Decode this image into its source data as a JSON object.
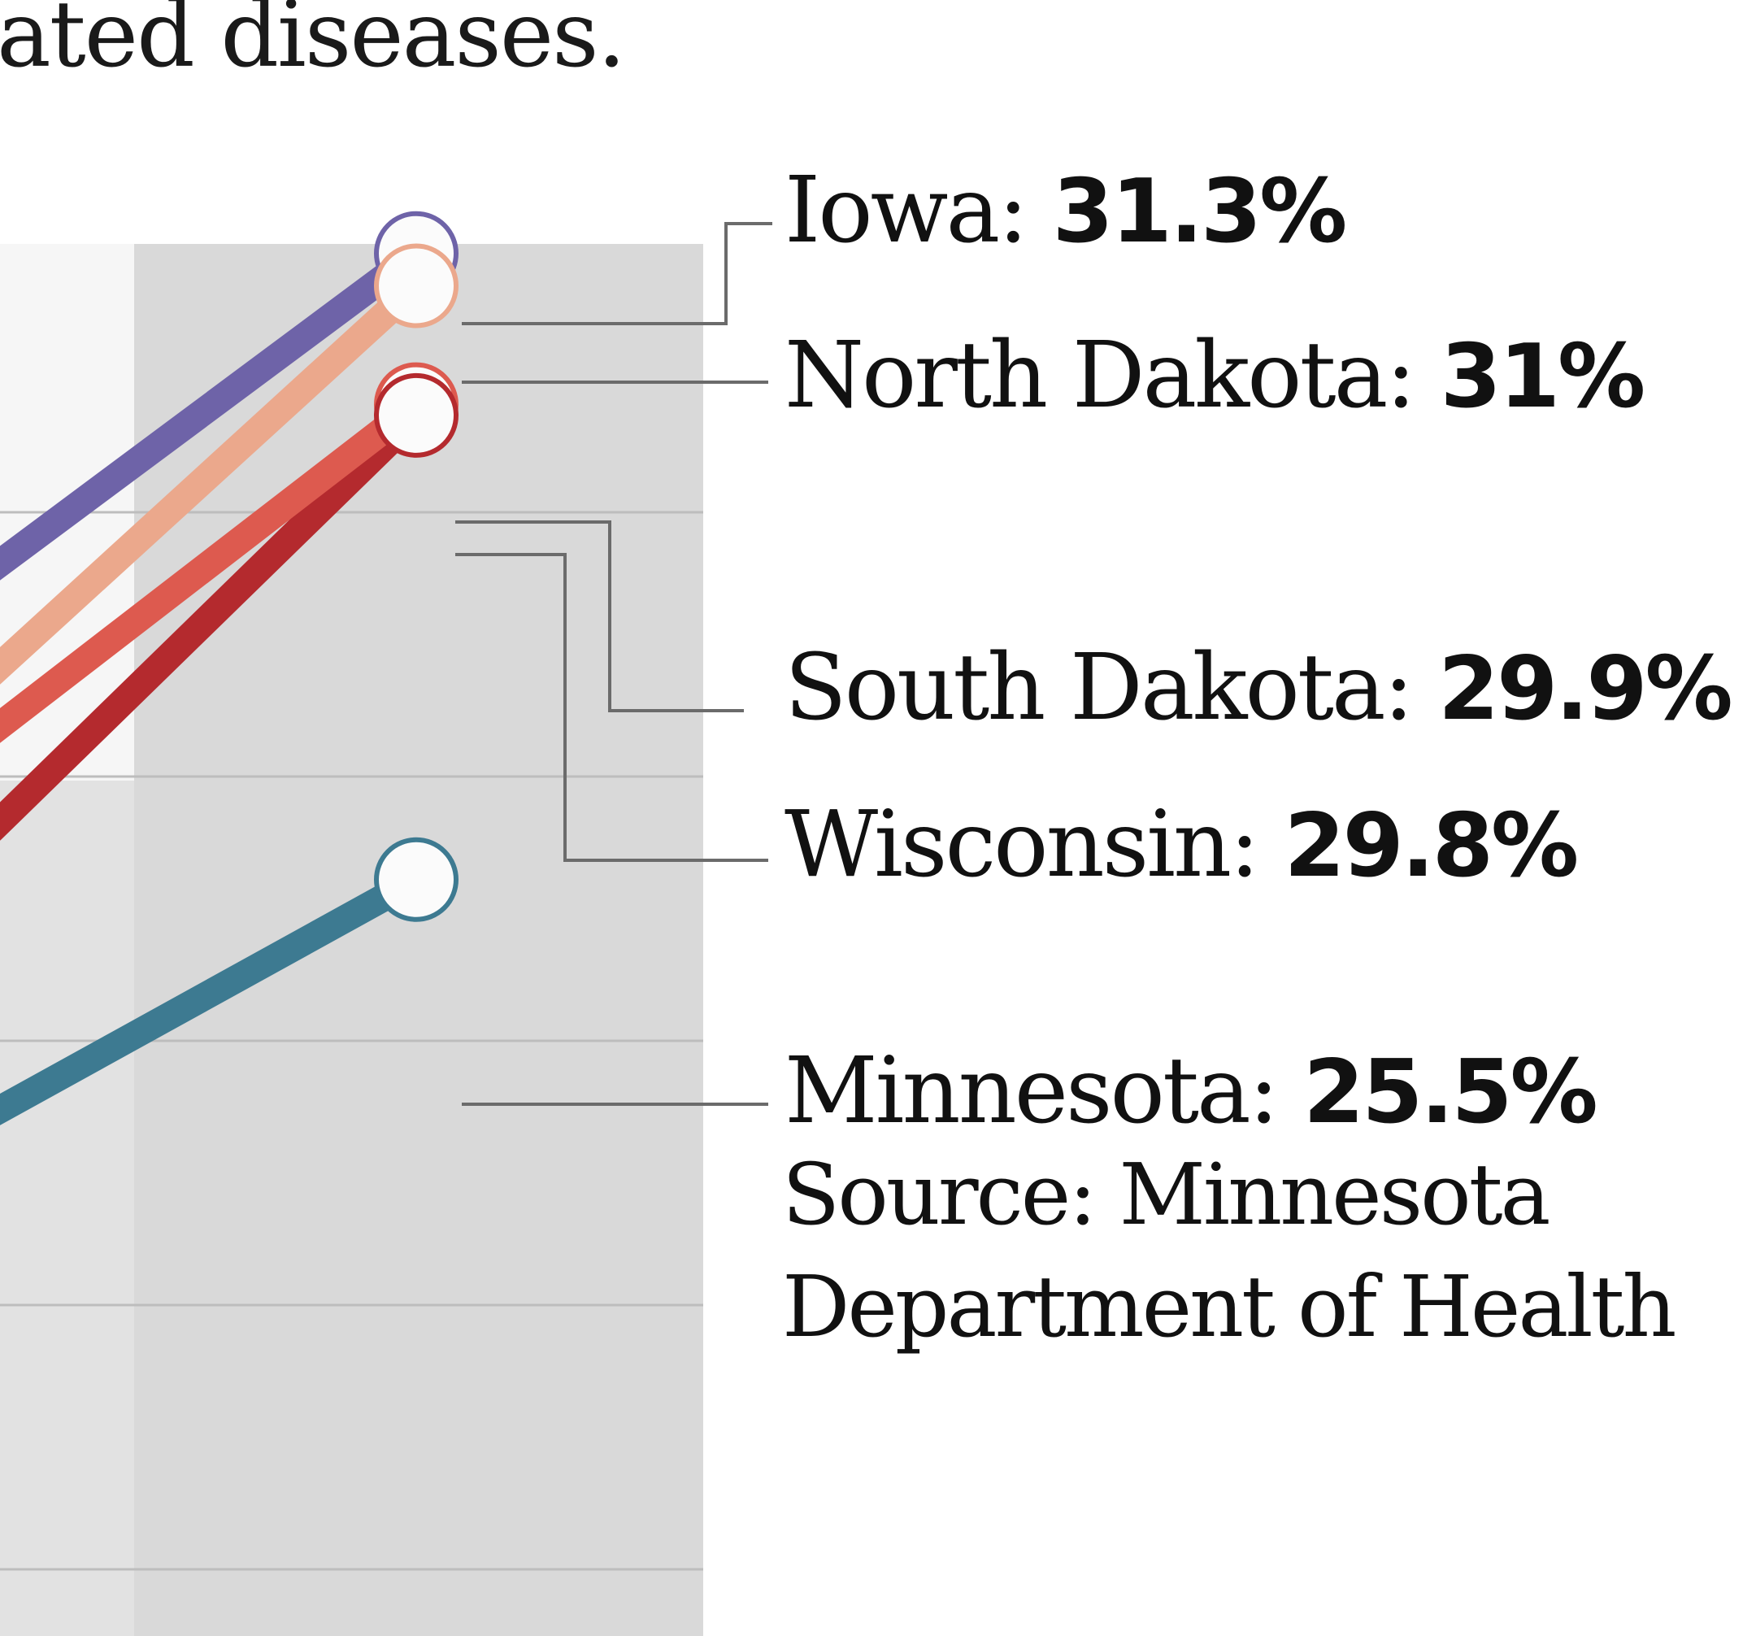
{
  "headline_fragment": "ated diseases.",
  "source": "Source: Minnesota Department of Health",
  "chart_data": {
    "type": "line",
    "series": [
      {
        "name": "Iowa",
        "value": 31.3,
        "value_label": "31.3%",
        "color": "#6e63a8"
      },
      {
        "name": "North Dakota",
        "value": 31,
        "value_label": "31%",
        "color": "#eba88c"
      },
      {
        "name": "South Dakota",
        "value": 29.9,
        "value_label": "29.9%",
        "color": "#dd5a4f"
      },
      {
        "name": "Wisconsin",
        "value": 29.8,
        "value_label": "29.8%",
        "color": "#b42a2e"
      },
      {
        "name": "Minnesota",
        "value": 25.5,
        "value_label": "25.5%",
        "color": "#3d7a91"
      }
    ],
    "y_range": [
      20,
      33
    ],
    "grid": true,
    "legend": "direct labels on the right"
  }
}
